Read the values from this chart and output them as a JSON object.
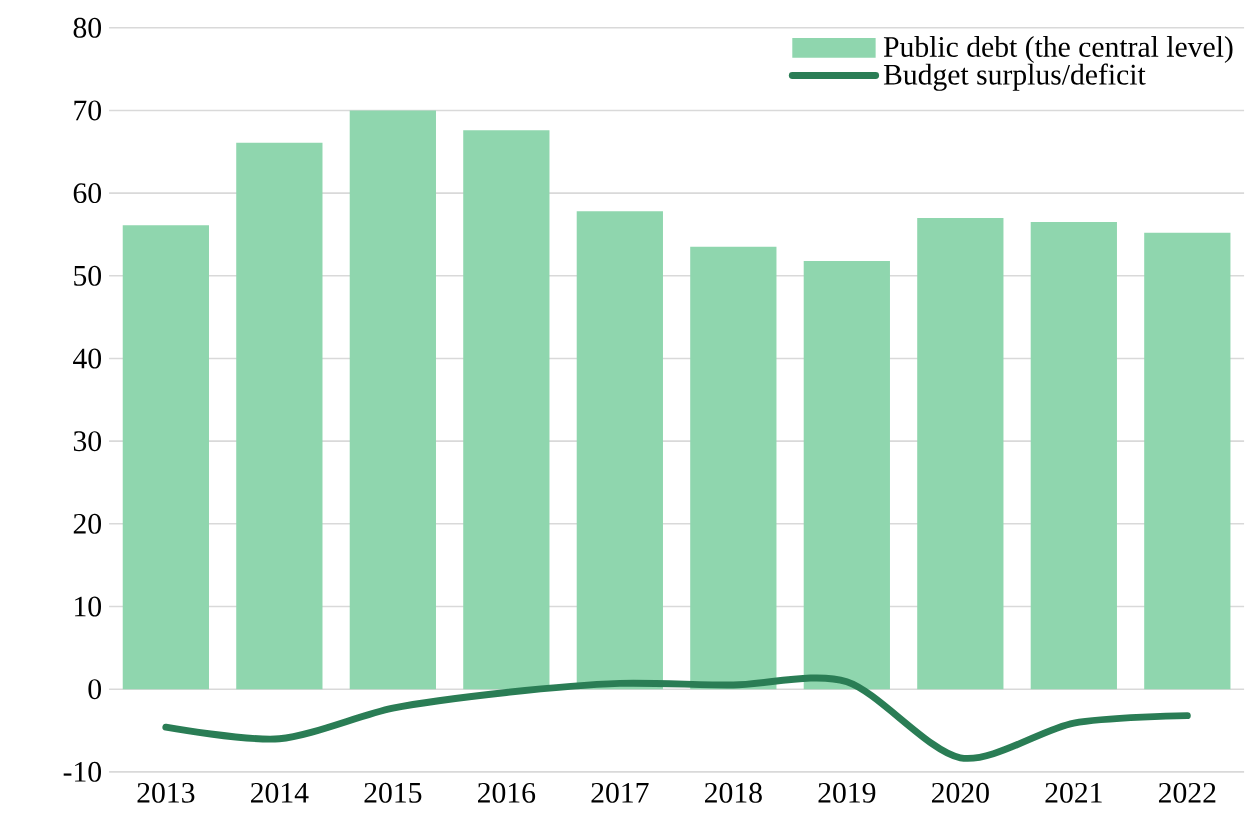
{
  "chart_data": {
    "type": "bar",
    "categories": [
      "2013",
      "2014",
      "2015",
      "2016",
      "2017",
      "2018",
      "2019",
      "2020",
      "2021",
      "2022"
    ],
    "series": [
      {
        "name": "Public debt (the central level)",
        "color": "#8fd6ae",
        "values": [
          56.1,
          66.1,
          70.0,
          67.6,
          57.8,
          53.5,
          51.8,
          57.0,
          56.5,
          55.2
        ]
      },
      {
        "name": "Budget surplus/deficit",
        "type": "line",
        "color": "#2a7d55",
        "values": [
          -4.6,
          -6.0,
          -2.3,
          -0.4,
          0.7,
          0.5,
          0.9,
          -8.3,
          -4.1,
          -3.2
        ]
      }
    ],
    "ylim": [
      -10,
      80
    ],
    "yticks": [
      -10,
      0,
      10,
      20,
      30,
      40,
      50,
      60,
      70,
      80
    ],
    "grid": "y",
    "legend": "top right",
    "marker": "none",
    "line_style": "solid"
  }
}
